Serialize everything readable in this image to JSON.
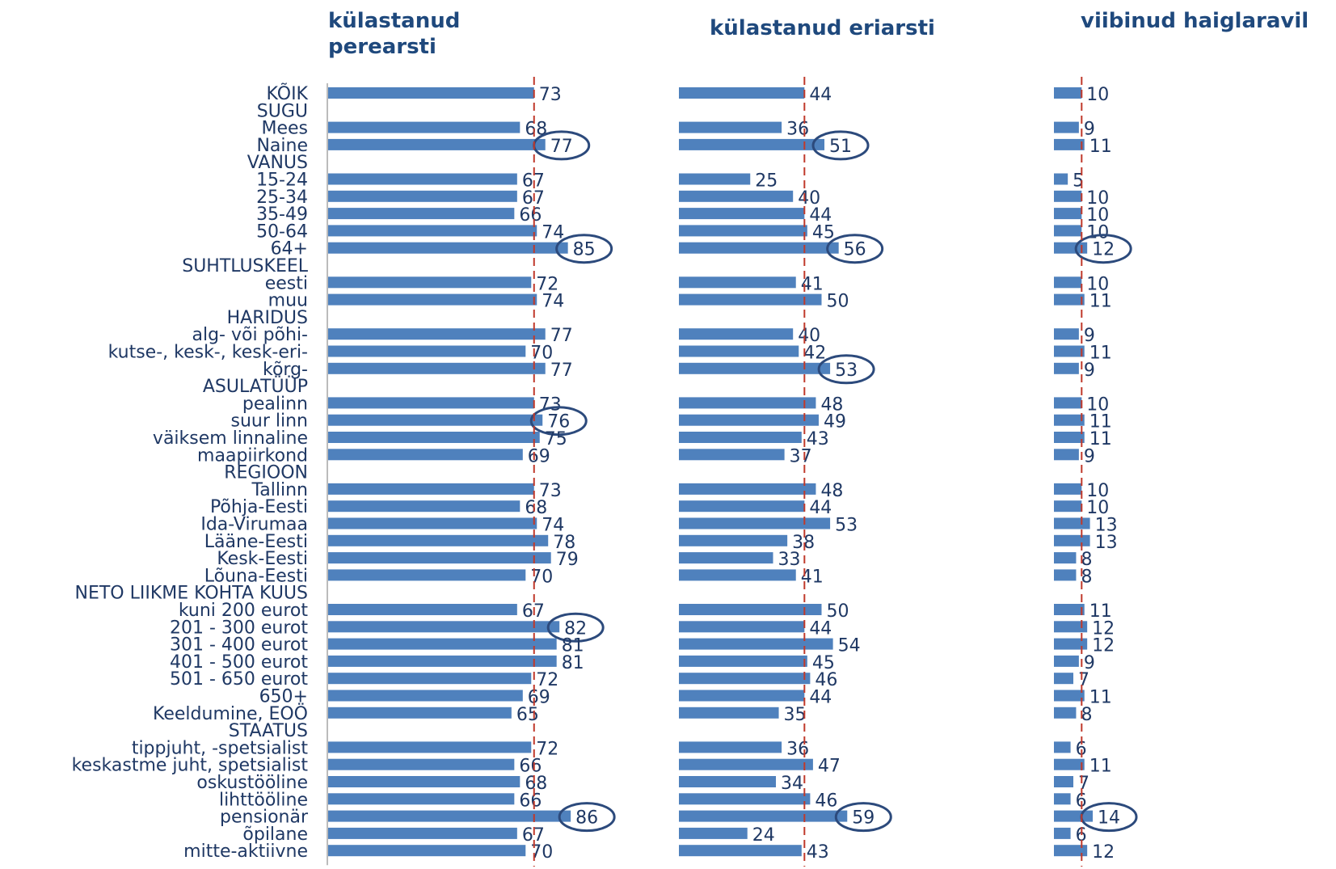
{
  "chart_data": {
    "type": "bar",
    "orientation": "horizontal",
    "colors": {
      "bar": "#4f81bd",
      "reference_line": "#c0392b",
      "highlight_circle": "#2c4a7c",
      "text": "#1f3864",
      "title": "#1f497d"
    },
    "categories": [
      "KÕIK",
      "SUGU",
      "Mees",
      "Naine",
      "VANUS",
      "15-24",
      "25-34",
      "35-49",
      "50-64",
      "64+",
      "SUHTLUSKEEL",
      "eesti",
      "muu",
      "HARIDUS",
      "alg- või põhi-",
      "kutse-, kesk-, kesk-eri-",
      "kõrg-",
      "ASULATÜÜP",
      "pealinn",
      "suur linn",
      "väiksem linnaline",
      "maapiirkond",
      "REGIOON",
      "Tallinn",
      "Põhja-Eesti",
      "Ida-Virumaa",
      "Lääne-Eesti",
      "Kesk-Eesti",
      "Lõuna-Eesti",
      "NETO LIIKME KOHTA KUUS",
      "kuni 200 eurot",
      "201 - 300 eurot",
      "301 - 400 eurot",
      "401 - 500 eurot",
      "501 - 650 eurot",
      "650+",
      "Keeldumine, EOÖ",
      "STAATUS",
      "tippjuht, -spetsialist",
      "keskastme juht, spetsialist",
      "oskustööline",
      "lihttööline",
      "pensionär",
      "õpilane",
      "mitte-aktiivne"
    ],
    "series": [
      {
        "name": "külastanud perearsti",
        "reference": 73,
        "values": [
          73,
          null,
          68,
          77,
          null,
          67,
          67,
          66,
          74,
          85,
          null,
          72,
          74,
          null,
          77,
          70,
          77,
          null,
          73,
          76,
          75,
          69,
          null,
          73,
          68,
          74,
          78,
          79,
          70,
          null,
          67,
          82,
          81,
          81,
          72,
          69,
          65,
          null,
          72,
          66,
          68,
          66,
          86,
          67,
          70
        ],
        "highlighted": [
          "Naine",
          "64+",
          "suur linn",
          "201 - 300 eurot",
          "pensionär"
        ]
      },
      {
        "name": "külastanud eriarsti",
        "reference": 44,
        "values": [
          44,
          null,
          36,
          51,
          null,
          25,
          40,
          44,
          45,
          56,
          null,
          41,
          50,
          null,
          40,
          42,
          53,
          null,
          48,
          49,
          43,
          37,
          null,
          48,
          44,
          53,
          38,
          33,
          41,
          null,
          50,
          44,
          54,
          45,
          46,
          44,
          35,
          null,
          36,
          47,
          34,
          46,
          59,
          24,
          43
        ],
        "highlighted": [
          "Naine",
          "64+",
          "kõrg-",
          "pensionär"
        ]
      },
      {
        "name": "viibinud haiglaravil",
        "reference": 10,
        "values": [
          10,
          null,
          9,
          11,
          null,
          5,
          10,
          10,
          10,
          12,
          null,
          10,
          11,
          null,
          9,
          11,
          9,
          null,
          10,
          11,
          11,
          9,
          null,
          10,
          10,
          13,
          13,
          8,
          8,
          null,
          11,
          12,
          12,
          9,
          7,
          11,
          8,
          null,
          6,
          11,
          7,
          6,
          14,
          6,
          12
        ],
        "highlighted": [
          "64+",
          "pensionär"
        ]
      }
    ]
  }
}
